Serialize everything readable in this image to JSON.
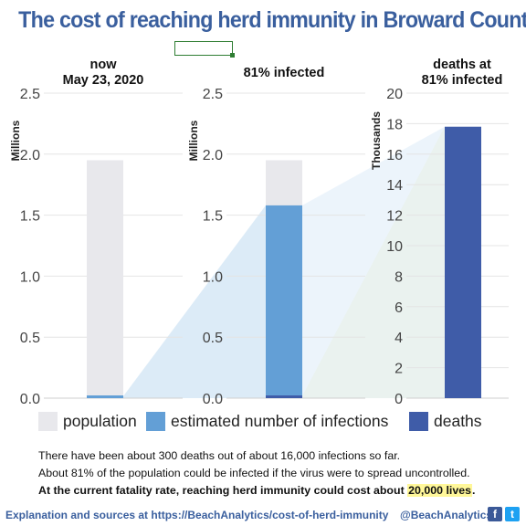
{
  "title": "The cost of reaching herd immunity in Broward County",
  "colors": {
    "title": "#3a5f9e",
    "population": "#e8e8ec",
    "infections": "#639fd6",
    "deaths": "#3f5ca8",
    "wedge_blue": "#dcebf7",
    "wedge_yellow": "#fbfbe4",
    "grid": "#e4e4e4"
  },
  "chart_data": [
    {
      "type": "bar",
      "header": [
        "now",
        "May 23, 2020"
      ],
      "ylabel": "Millions",
      "ylim": [
        0,
        2.5
      ],
      "yticks": [
        "0.0",
        "0.5",
        "1.0",
        "1.5",
        "2.0",
        "2.5"
      ],
      "series": [
        {
          "name": "population",
          "value": 1.95
        },
        {
          "name": "estimated number of infections",
          "value": 0.016
        }
      ]
    },
    {
      "type": "bar",
      "header": [
        "81% infected"
      ],
      "ylabel": "Millions",
      "ylim": [
        0,
        2.5
      ],
      "yticks": [
        "0.0",
        "0.5",
        "1.0",
        "1.5",
        "2.0",
        "2.5"
      ],
      "series": [
        {
          "name": "population",
          "value": 1.95
        },
        {
          "name": "estimated number of infections",
          "value": 1.58
        },
        {
          "name": "deaths",
          "value": 0.0178
        }
      ]
    },
    {
      "type": "bar",
      "header": [
        "deaths at",
        "81% infected"
      ],
      "ylabel": "Thousands",
      "ylim": [
        0,
        20
      ],
      "yticks": [
        "0",
        "2",
        "4",
        "6",
        "8",
        "10",
        "12",
        "14",
        "16",
        "18",
        "20"
      ],
      "series": [
        {
          "name": "deaths",
          "value": 17.8
        }
      ]
    }
  ],
  "legend": [
    {
      "label": "population",
      "color": "#e8e8ec"
    },
    {
      "label": "estimated number of infections",
      "color": "#639fd6"
    },
    {
      "label": "deaths",
      "color": "#3f5ca8"
    }
  ],
  "notes": {
    "line1": "There have been about 300 deaths out of about 16,000 infections so far.",
    "line2": "About 81% of the population could be infected if the virus were to spread uncontrolled.",
    "line3_pre": "At the current fatality rate, reaching herd immunity could cost about ",
    "line3_highlight": "20,000 lives",
    "line3_post": "."
  },
  "footer": {
    "link": "Explanation and sources at https://BeachAnalytics/cost-of-herd-immunity",
    "handle": "@BeachAnalytics",
    "facebook_icon": "f",
    "twitter_icon": "t"
  }
}
